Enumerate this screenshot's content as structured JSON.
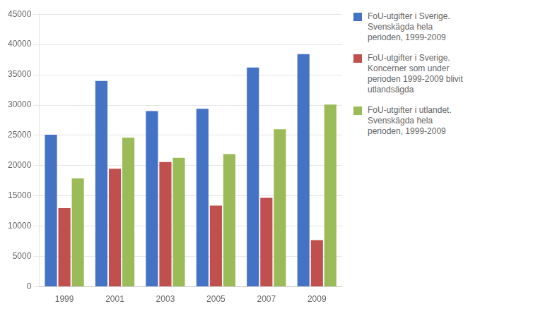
{
  "chart_data": {
    "type": "bar",
    "categories": [
      "1999",
      "2001",
      "2003",
      "2005",
      "2007",
      "2009"
    ],
    "series": [
      {
        "name": "FoU-utgifter i Sverige.\nSvenskägda hela\nperioden, 1999-2009",
        "color": "#4472C4",
        "values": [
          25100,
          34000,
          29000,
          29400,
          36200,
          38400
        ]
      },
      {
        "name": "FoU-utgifter i Sverige.\nKoncerner som under\nperioden 1999-2009 blivit\nutlandsägda",
        "color": "#C0504D",
        "values": [
          13000,
          19500,
          20600,
          13400,
          14700,
          7700
        ]
      },
      {
        "name": "FoU-utgifter i utlandet.\nSvenskägda hela\nperioden, 1999-2009",
        "color": "#9BBB59",
        "values": [
          17900,
          24600,
          21300,
          21900,
          26000,
          30100
        ]
      }
    ],
    "ylim": [
      0,
      45000
    ],
    "yticks": [
      0,
      5000,
      10000,
      15000,
      20000,
      25000,
      30000,
      35000,
      40000,
      45000
    ],
    "grid": true,
    "legend": "right"
  }
}
